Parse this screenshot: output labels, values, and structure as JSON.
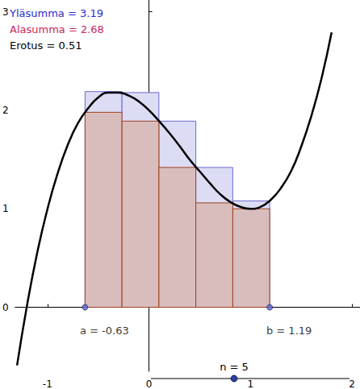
{
  "chart_data": {
    "type": "line",
    "annotations": [
      {
        "text": "Yläsumma = 3.19",
        "color": "#2b2bd0"
      },
      {
        "text": "Alasumma = 2.68",
        "color": "#c8285a"
      },
      {
        "text": "Erotus = 0.51",
        "color": "#000000"
      }
    ],
    "x": [
      -1.3,
      -1.2,
      -1.1,
      -1.0,
      -0.9,
      -0.8,
      -0.7,
      -0.6,
      -0.5,
      -0.4,
      -0.3,
      -0.2,
      -0.1,
      0.0,
      0.1,
      0.2,
      0.3,
      0.4,
      0.5,
      0.6,
      0.7,
      0.8,
      0.9,
      1.0,
      1.1,
      1.2,
      1.3,
      1.4,
      1.5,
      1.6,
      1.7,
      1.8
    ],
    "series": [
      {
        "color": "#000000",
        "values": [
          -0.59,
          0.03,
          0.56,
          1.0,
          1.36,
          1.65,
          1.87,
          2.02,
          2.13,
          2.18,
          2.18,
          2.15,
          2.09,
          2.0,
          1.89,
          1.77,
          1.64,
          1.5,
          1.38,
          1.26,
          1.15,
          1.07,
          1.02,
          1.0,
          1.02,
          1.09,
          1.21,
          1.38,
          1.63,
          1.94,
          2.32,
          2.79
        ]
      }
    ],
    "rectangles": {
      "edges": [
        -0.63,
        -0.266,
        0.098,
        0.462,
        0.826,
        1.19
      ],
      "upper": {
        "color": "#dcdcf5",
        "values": [
          2.19,
          2.18,
          1.89,
          1.42,
          1.08
        ]
      },
      "lower": {
        "color": "#d9bdbd",
        "values": [
          1.98,
          1.89,
          1.42,
          1.06,
          1.0
        ]
      }
    },
    "points": [
      {
        "x": -0.63,
        "y": 0,
        "label": "a = -0.63"
      },
      {
        "x": 1.19,
        "y": 0,
        "label": "b = 1.19"
      }
    ],
    "slider": {
      "label": "n = 5",
      "value": 5
    },
    "xlim": [
      -1.32,
      2.08
    ],
    "ylim": [
      -0.65,
      3.12
    ],
    "xticks": [
      -1,
      0,
      1,
      2
    ],
    "yticks": [
      0,
      1,
      2,
      3
    ],
    "grid": false
  }
}
